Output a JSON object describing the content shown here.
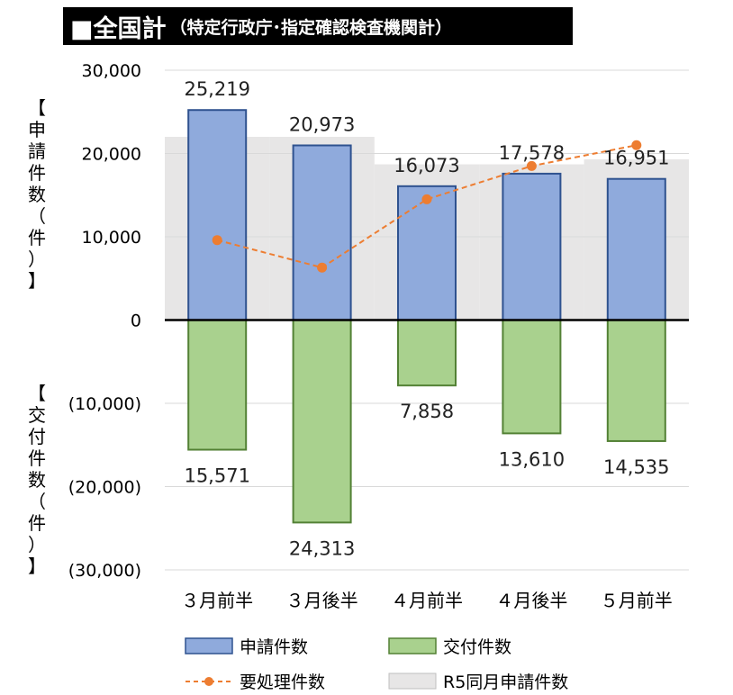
{
  "title": {
    "main": "■全国計",
    "sub": "（特定行政庁･指定確認検査機関計）"
  },
  "axis_labels": {
    "upper": "【申請件数（件）】",
    "lower": "【交付件数（件）】"
  },
  "colors": {
    "application_fill": "#8faadc",
    "application_stroke": "#2f528f",
    "issued_fill": "#a9d18e",
    "issued_stroke": "#538135",
    "pending_line": "#ed7d31",
    "r5_fill": "#e7e6e6"
  },
  "chart_data": {
    "type": "bar",
    "categories": [
      "３月前半",
      "３月後半",
      "４月前半",
      "４月後半",
      "５月前半"
    ],
    "series": [
      {
        "name": "申請件数",
        "kind": "bar",
        "values": [
          25219,
          20973,
          16073,
          17578,
          16951
        ],
        "labels": [
          "25,219",
          "20,973",
          "16,073",
          "17,578",
          "16,951"
        ]
      },
      {
        "name": "交付件数",
        "kind": "bar-negative",
        "values": [
          15571,
          24313,
          7858,
          13610,
          14535
        ],
        "labels": [
          "15,571",
          "24,313",
          "7,858",
          "13,610",
          "14,535"
        ]
      },
      {
        "name": "要処理件数",
        "kind": "line-dashed",
        "values": [
          9600,
          6300,
          14500,
          18500,
          21000
        ]
      },
      {
        "name": "R5同月申請件数",
        "kind": "area-step",
        "values": [
          22000,
          22000,
          18700,
          18700,
          19300
        ]
      }
    ],
    "ylim": [
      -30000,
      30000
    ],
    "yticks": [
      30000,
      20000,
      10000,
      0,
      -10000,
      -20000,
      -30000
    ],
    "ytick_labels": [
      "30,000",
      "20,000",
      "10,000",
      "0",
      "(10,000)",
      "(20,000)",
      "(30,000)"
    ],
    "grid": true,
    "legend_position": "bottom"
  }
}
